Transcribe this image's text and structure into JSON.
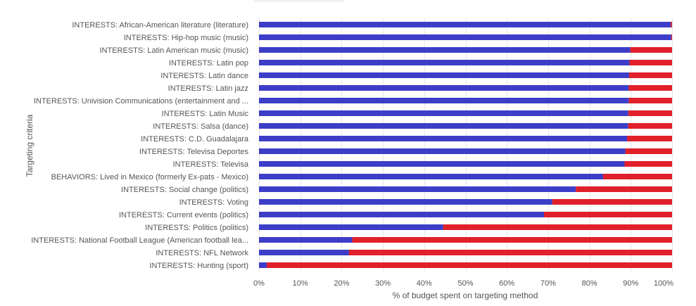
{
  "chart_data": {
    "type": "bar",
    "orientation": "horizontal",
    "stacked": true,
    "ylabel": "Targeting criteria",
    "xlabel": "% of budget spent on targeting method",
    "xlim": [
      0,
      100
    ],
    "xticks": [
      "0%",
      "10%",
      "20%",
      "30%",
      "40%",
      "50%",
      "60%",
      "70%",
      "80%",
      "90%",
      "100%"
    ],
    "grid": true,
    "legend": "none",
    "colors": {
      "first": "#3d3dc8",
      "second": "#e0202a"
    },
    "categories": [
      "INTERESTS: African-American literature (literature)",
      "INTERESTS: Hip-hop music (music)",
      "INTERESTS: Latin American music (music)",
      "INTERESTS: Latin pop",
      "INTERESTS: Latin dance",
      "INTERESTS: Latin jazz",
      "INTERESTS: Univision Communications (entertainment and ...",
      "INTERESTS: Latin Music",
      "INTERESTS: Salsa (dance)",
      "INTERESTS: C.D. Guadalajara",
      "INTERESTS: Televisa Deportes",
      "INTERESTS: Televisa",
      "BEHAVIORS: Lived in Mexico (formerly Ex-pats - Mexico)",
      "INTERESTS: Social change (politics)",
      "INTERESTS: Voting",
      "INTERESTS: Current events (politics)",
      "INTERESTS: Politics (politics)",
      "INTERESTS: National Football League (American football lea...",
      "INTERESTS: NFL Network",
      "INTERESTS: Hunting (sport)"
    ],
    "series": [
      {
        "values": [
          99.7,
          99.8,
          89.9,
          89.7,
          89.6,
          89.5,
          89.5,
          89.4,
          89.4,
          89.1,
          88.7,
          88.5,
          83.3,
          76.7,
          71.0,
          69.0,
          44.6,
          22.6,
          21.8,
          1.9
        ]
      },
      {
        "values": [
          0.3,
          0.2,
          10.1,
          10.3,
          10.4,
          10.5,
          10.5,
          10.6,
          10.6,
          10.9,
          11.3,
          11.5,
          16.7,
          23.3,
          29.0,
          31.0,
          55.4,
          77.4,
          78.2,
          98.1
        ]
      }
    ]
  }
}
